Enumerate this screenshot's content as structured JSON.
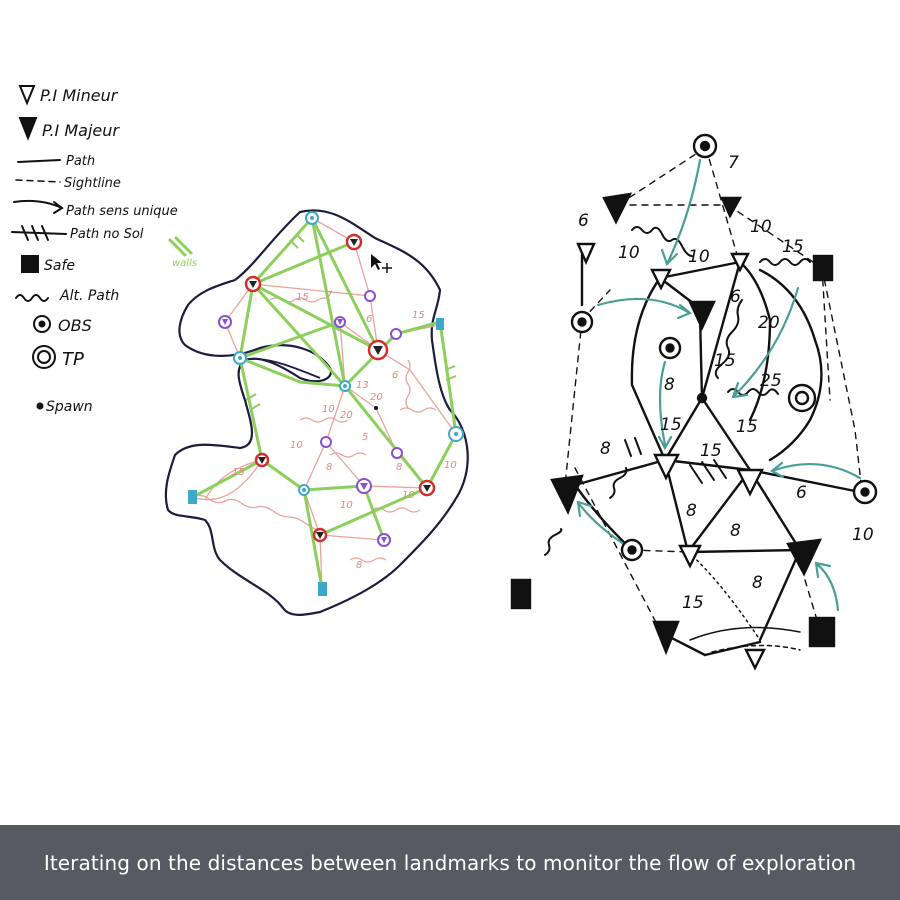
{
  "legend": {
    "items": [
      {
        "icon": "triangle-outline-icon",
        "label": "P.I Mineur"
      },
      {
        "icon": "triangle-filled-icon",
        "label": "P.I Majeur"
      },
      {
        "icon": "solid-line-icon",
        "label": "Path"
      },
      {
        "icon": "dashed-line-icon",
        "label": "Sightline"
      },
      {
        "icon": "arrow-icon",
        "label": "Path sens unique"
      },
      {
        "icon": "hatched-line-icon",
        "label": "Path no Sol"
      },
      {
        "icon": "square-filled-icon",
        "label": "Safe"
      },
      {
        "icon": "wavy-line-icon",
        "label": "Alt. Path"
      },
      {
        "icon": "circle-dot-icon",
        "label": "OBS"
      },
      {
        "icon": "double-circle-icon",
        "label": "TP"
      },
      {
        "icon": "dot-icon",
        "label": "Spawn"
      }
    ]
  },
  "left_map": {
    "note": "walls",
    "edge_labels": [
      "15",
      "7",
      "6",
      "13",
      "10",
      "10",
      "15",
      "20",
      "8",
      "10",
      "5",
      "8",
      "6",
      "20",
      "10",
      "15",
      "8",
      "10"
    ]
  },
  "right_graph": {
    "edge_labels": [
      "7",
      "6",
      "10",
      "10",
      "15",
      "6",
      "20",
      "15",
      "25",
      "8",
      "15",
      "15",
      "15",
      "8",
      "8",
      "8",
      "6",
      "8",
      "10",
      "15",
      "10"
    ]
  },
  "colors": {
    "ink": "#111111",
    "teal_arrow": "#4a9e97",
    "green_path": "#8ccf5c",
    "pink_path": "#eaa39a",
    "map_outline": "#1c1c3c",
    "red_marker": "#d0312d",
    "purple_marker": "#8a4fd1",
    "blue_marker": "#3fa7c9",
    "caption_bg": "#575b61"
  },
  "caption": "Iterating on the distances between landmarks to monitor the flow of exploration"
}
